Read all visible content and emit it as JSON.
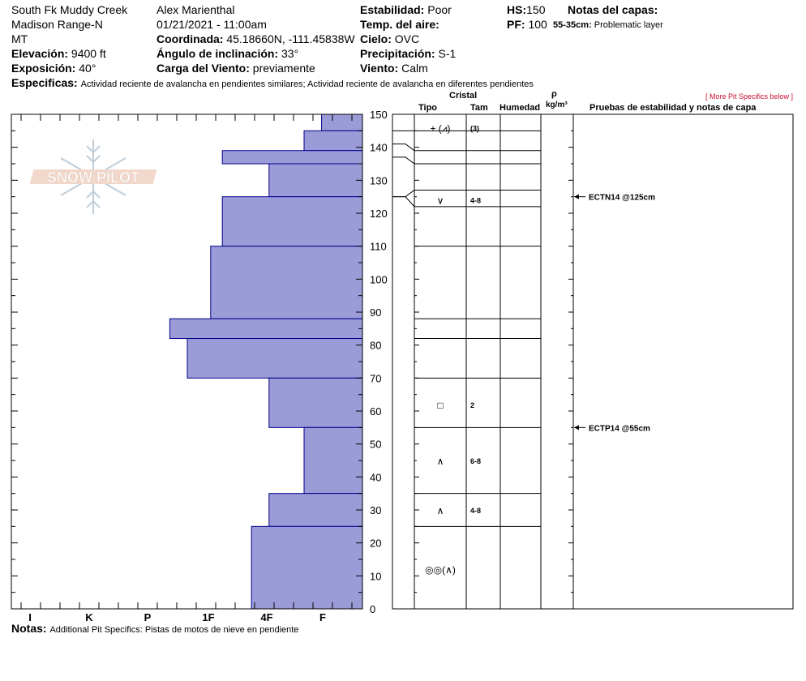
{
  "header": {
    "location": "South Fk Muddy Creek",
    "range": "Madison Range-N",
    "state": "MT",
    "elevation_label": "Elevación:",
    "elevation": "9400 ft",
    "aspect_label": "Exposición:",
    "aspect": "40°",
    "observer": "Alex Marienthal",
    "datetime": "01/21/2021 - 11:00am",
    "coord_label": "Coordinada:",
    "coord": "45.18660N, -111.45838W",
    "slope_label": "Ángulo de inclinación:",
    "slope": "33°",
    "wind_load_label": "Carga del Viento:",
    "wind_load": "previamente",
    "stability_label": "Estabilidad:",
    "stability": "Poor",
    "air_temp_label": "Temp. del aire:",
    "sky_label": "Cielo:",
    "sky": "OVC",
    "precip_label": "Precipitación:",
    "precip": "S-1",
    "wind_label": "Viento:",
    "wind": "Calm",
    "hs_label": "HS:",
    "hs": "150",
    "pf_label": "PF:",
    "pf": "100",
    "layer_notes_label": "Notas del capas:",
    "layer_note_range": "55-35cm:",
    "layer_note": "Problematic layer",
    "specifics_label": "Especificas:",
    "specifics": "Actividad reciente de avalancha en pendientes similares; Actividad reciente de avalancha en diferentes pendientes"
  },
  "more_link": "[ More Pit Specifics below ]",
  "columns": {
    "cristal": "Cristal",
    "tipo": "Tipo",
    "tam": "Tam",
    "humedad": "Humedad",
    "rho": "ρ",
    "density_unit": "kg/m³",
    "tests": "Pruebas de estabilidad y notas de capa"
  },
  "logo_text": "SNOW PILOT",
  "notes_label": "Notas:",
  "notes": "Additional Pit Specifics: Pistas de motos de nieve en pendiente",
  "chart_data": {
    "type": "bar",
    "title": "",
    "xlabel": "",
    "ylabel": "",
    "ylim": [
      0,
      150
    ],
    "y_ticks": [
      0,
      10,
      20,
      30,
      40,
      50,
      60,
      70,
      80,
      90,
      100,
      110,
      120,
      130,
      140,
      150
    ],
    "hardness_scale": [
      "I",
      "K",
      "P",
      "1F",
      "4F",
      "F"
    ],
    "hardness_note": "hardness bars drawn as distance to the left of the right axis",
    "layers": [
      {
        "top": 150,
        "bottom": 145,
        "hardness": 0.7
      },
      {
        "top": 145,
        "bottom": 139,
        "hardness": 1.0
      },
      {
        "top": 139,
        "bottom": 135,
        "hardness": 2.4
      },
      {
        "top": 135,
        "bottom": 125,
        "hardness": 1.6
      },
      {
        "top": 125,
        "bottom": 110,
        "hardness": 2.4
      },
      {
        "top": 110,
        "bottom": 88,
        "hardness": 2.6
      },
      {
        "top": 88,
        "bottom": 82,
        "hardness": 3.3
      },
      {
        "top": 82,
        "bottom": 70,
        "hardness": 3.0
      },
      {
        "top": 70,
        "bottom": 55,
        "hardness": 1.6
      },
      {
        "top": 55,
        "bottom": 35,
        "hardness": 1.0
      },
      {
        "top": 35,
        "bottom": 25,
        "hardness": 1.6
      },
      {
        "top": 25,
        "bottom": 0,
        "hardness": 1.9
      }
    ],
    "layer_lines": [
      150,
      145,
      139,
      135,
      127,
      122,
      110,
      88,
      82,
      70,
      55,
      35,
      25,
      0
    ],
    "crystals": [
      {
        "depth": 146,
        "type": "+ (⩘)",
        "size": "(3)"
      },
      {
        "depth": 124,
        "type": "∨",
        "size": "4-8"
      },
      {
        "depth": 62,
        "type": "□",
        "size": "2"
      },
      {
        "depth": 45,
        "type": "∧",
        "size": "6-8"
      },
      {
        "depth": 30,
        "type": "∧",
        "size": "4-8"
      },
      {
        "depth": 12,
        "type": "◎◎(∧)",
        "size": ""
      }
    ],
    "tests": [
      {
        "depth": 125,
        "label": "ECTN14 @125cm"
      },
      {
        "depth": 55,
        "label": "ECTP14 @55cm"
      }
    ]
  }
}
